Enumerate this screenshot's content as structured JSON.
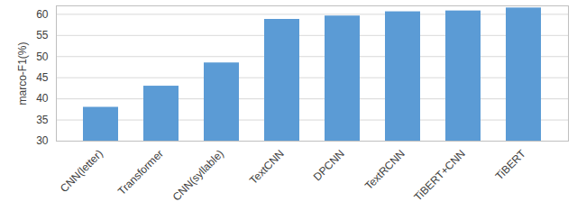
{
  "chart_data": {
    "type": "bar",
    "y_label": "marco-F1(%)",
    "categories": [
      "CNN(letter)",
      "Transformer",
      "CNN(syllable)",
      "TextCNN",
      "DPCNN",
      "TextRCNN",
      "TiBERT+CNN",
      "TiBERT"
    ],
    "values": [
      38.0,
      43.0,
      48.5,
      58.8,
      59.6,
      60.6,
      60.8,
      61.5
    ],
    "color": "#5b9bd5",
    "ylim": [
      30,
      62
    ],
    "yticks": [
      30,
      35,
      40,
      45,
      50,
      55,
      60
    ],
    "grid": true
  }
}
